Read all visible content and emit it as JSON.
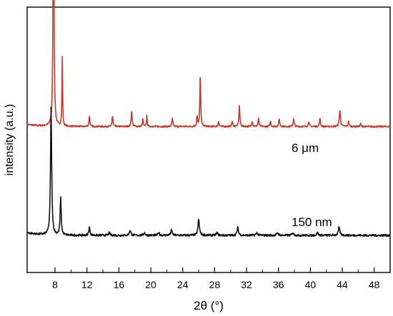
{
  "chart_data": {
    "type": "line",
    "xlabel": "2θ (°)",
    "ylabel": "intensity (a.u.)",
    "xlim": [
      4.5,
      50
    ],
    "x_ticks": [
      "8",
      "12",
      "16",
      "20",
      "24",
      "28",
      "32",
      "36",
      "40",
      "44",
      "48"
    ],
    "grid": false,
    "series": [
      {
        "name": "6 μm",
        "color": "#c0392b",
        "baseline": 0.55,
        "peaks": [
          {
            "x": 7.8,
            "h": 0.98,
            "w": 0.1
          },
          {
            "x": 8.9,
            "h": 0.26,
            "w": 0.07
          },
          {
            "x": 12.3,
            "h": 0.04,
            "w": 0.1
          },
          {
            "x": 15.2,
            "h": 0.04,
            "w": 0.1
          },
          {
            "x": 17.6,
            "h": 0.06,
            "w": 0.1
          },
          {
            "x": 19.0,
            "h": 0.03,
            "w": 0.08
          },
          {
            "x": 19.5,
            "h": 0.04,
            "w": 0.08
          },
          {
            "x": 22.7,
            "h": 0.03,
            "w": 0.1
          },
          {
            "x": 25.8,
            "h": 0.04,
            "w": 0.08
          },
          {
            "x": 26.2,
            "h": 0.2,
            "w": 0.09
          },
          {
            "x": 28.5,
            "h": 0.02,
            "w": 0.1
          },
          {
            "x": 30.2,
            "h": 0.02,
            "w": 0.1
          },
          {
            "x": 31.1,
            "h": 0.08,
            "w": 0.1
          },
          {
            "x": 32.7,
            "h": 0.02,
            "w": 0.1
          },
          {
            "x": 33.5,
            "h": 0.03,
            "w": 0.1
          },
          {
            "x": 35.0,
            "h": 0.02,
            "w": 0.1
          },
          {
            "x": 36.1,
            "h": 0.03,
            "w": 0.1
          },
          {
            "x": 37.9,
            "h": 0.03,
            "w": 0.1
          },
          {
            "x": 39.8,
            "h": 0.02,
            "w": 0.1
          },
          {
            "x": 41.2,
            "h": 0.03,
            "w": 0.1
          },
          {
            "x": 43.7,
            "h": 0.06,
            "w": 0.13
          },
          {
            "x": 44.8,
            "h": 0.02,
            "w": 0.1
          },
          {
            "x": 46.3,
            "h": 0.01,
            "w": 0.1
          }
        ]
      },
      {
        "name": "150 nm",
        "color": "#111111",
        "baseline": 0.14,
        "peaks": [
          {
            "x": 7.5,
            "h": 0.48,
            "w": 0.13
          },
          {
            "x": 8.7,
            "h": 0.14,
            "w": 0.12
          },
          {
            "x": 12.3,
            "h": 0.03,
            "w": 0.13
          },
          {
            "x": 14.8,
            "h": 0.01,
            "w": 0.15
          },
          {
            "x": 17.4,
            "h": 0.02,
            "w": 0.15
          },
          {
            "x": 19.2,
            "h": 0.01,
            "w": 0.15
          },
          {
            "x": 21.0,
            "h": 0.01,
            "w": 0.15
          },
          {
            "x": 22.6,
            "h": 0.02,
            "w": 0.15
          },
          {
            "x": 26.0,
            "h": 0.06,
            "w": 0.16
          },
          {
            "x": 28.3,
            "h": 0.01,
            "w": 0.15
          },
          {
            "x": 30.9,
            "h": 0.03,
            "w": 0.15
          },
          {
            "x": 33.3,
            "h": 0.01,
            "w": 0.15
          },
          {
            "x": 35.9,
            "h": 0.01,
            "w": 0.15
          },
          {
            "x": 37.8,
            "h": 0.01,
            "w": 0.15
          },
          {
            "x": 40.9,
            "h": 0.01,
            "w": 0.15
          },
          {
            "x": 43.6,
            "h": 0.03,
            "w": 0.16
          }
        ]
      }
    ],
    "annotations": [
      {
        "text": "6 μm",
        "series": 0
      },
      {
        "text": "150 nm",
        "series": 1
      }
    ]
  }
}
